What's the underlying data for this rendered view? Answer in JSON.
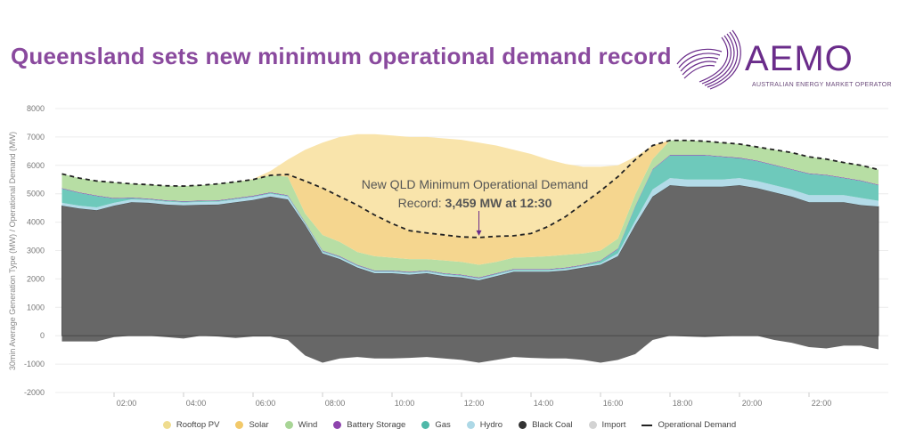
{
  "header": {
    "title": "Queensland sets new minimum operational demand record"
  },
  "logo": {
    "brand": "AEMO",
    "subtitle": "AUSTRALIAN ENERGY MARKET OPERATOR"
  },
  "chart_data": {
    "type": "area",
    "stacked": true,
    "title": "Queensland sets new minimum operational demand record",
    "xlabel": "",
    "ylabel": "30min Average Generation Type (MW) / Operational Demand (MW)",
    "ylim": [
      -2000,
      8000
    ],
    "yticks": [
      8000,
      7000,
      6000,
      5000,
      4000,
      3000,
      2000,
      1000,
      0,
      -1000,
      -2000
    ],
    "xtick_labels": [
      "02:00",
      "04:00",
      "06:00",
      "08:00",
      "10:00",
      "12:00",
      "14:00",
      "16:00",
      "18:00",
      "20:00",
      "22:00"
    ],
    "xtick_hours": [
      2,
      4,
      6,
      8,
      10,
      12,
      14,
      16,
      18,
      20,
      22
    ],
    "grid": true,
    "legend_position": "bottom",
    "x_hours": [
      0.5,
      1,
      1.5,
      2,
      2.5,
      3,
      3.5,
      4,
      4.5,
      5,
      5.5,
      6,
      6.5,
      7,
      7.5,
      8,
      8.5,
      9,
      9.5,
      10,
      10.5,
      11,
      11.5,
      12,
      12.5,
      13,
      13.5,
      14,
      14.5,
      15,
      15.5,
      16,
      16.5,
      17,
      17.5,
      18,
      18.5,
      19,
      19.5,
      20,
      20.5,
      21,
      21.5,
      22,
      22.5,
      23,
      23.5,
      24
    ],
    "series": [
      {
        "name": "Import",
        "color": "#d3d3d3",
        "fill": "#676767",
        "values": [
          -200,
          -200,
          -200,
          -50,
          0,
          0,
          -50,
          -100,
          0,
          -30,
          -80,
          -30,
          -30,
          -150,
          -700,
          -950,
          -800,
          -750,
          -800,
          -800,
          -780,
          -750,
          -800,
          -850,
          -950,
          -850,
          -750,
          -780,
          -800,
          -800,
          -850,
          -950,
          -850,
          -650,
          -150,
          0,
          -30,
          -50,
          -20,
          0,
          0,
          -150,
          -250,
          -400,
          -450,
          -350,
          -350,
          -480
        ]
      },
      {
        "name": "Black Coal",
        "color": "#333333",
        "fill": "#676767",
        "values": [
          4580,
          4480,
          4420,
          4580,
          4700,
          4680,
          4620,
          4590,
          4610,
          4620,
          4700,
          4780,
          4900,
          4800,
          3900,
          2900,
          2700,
          2400,
          2200,
          2200,
          2150,
          2200,
          2100,
          2050,
          1950,
          2100,
          2250,
          2250,
          2250,
          2300,
          2400,
          2500,
          2800,
          3900,
          4900,
          5300,
          5250,
          5250,
          5250,
          5300,
          5200,
          5050,
          4900,
          4700,
          4700,
          4700,
          4600,
          4550
        ]
      },
      {
        "name": "Hydro",
        "color": "#add8e6",
        "fill": "#b3dbe8",
        "values": [
          100,
          100,
          100,
          100,
          100,
          100,
          100,
          100,
          100,
          100,
          100,
          100,
          100,
          100,
          50,
          50,
          50,
          50,
          50,
          50,
          50,
          50,
          50,
          50,
          50,
          50,
          50,
          50,
          50,
          50,
          50,
          50,
          100,
          150,
          250,
          250,
          250,
          250,
          250,
          250,
          250,
          250,
          250,
          250,
          250,
          250,
          250,
          200
        ]
      },
      {
        "name": "Gas",
        "color": "#4fb8a8",
        "fill": "#6ec9bb",
        "values": [
          500,
          450,
          400,
          150,
          50,
          30,
          30,
          30,
          30,
          30,
          30,
          30,
          30,
          30,
          30,
          30,
          30,
          30,
          30,
          30,
          30,
          30,
          30,
          30,
          30,
          30,
          30,
          30,
          30,
          30,
          30,
          80,
          150,
          500,
          700,
          800,
          850,
          850,
          800,
          700,
          700,
          700,
          700,
          750,
          700,
          600,
          600,
          550
        ]
      },
      {
        "name": "Battery Storage",
        "color": "#8e44ad",
        "fill": "#8e44ad",
        "values": [
          20,
          20,
          20,
          20,
          20,
          20,
          20,
          20,
          20,
          20,
          20,
          20,
          20,
          20,
          20,
          20,
          20,
          20,
          20,
          20,
          20,
          20,
          20,
          20,
          20,
          20,
          20,
          20,
          20,
          20,
          20,
          20,
          20,
          20,
          20,
          20,
          20,
          20,
          20,
          20,
          20,
          20,
          20,
          20,
          20,
          20,
          20,
          20
        ]
      },
      {
        "name": "Wind",
        "color": "#a8d596",
        "fill": "#b7dea4",
        "values": [
          500,
          500,
          510,
          550,
          480,
          490,
          510,
          530,
          540,
          580,
          570,
          570,
          600,
          650,
          300,
          550,
          500,
          450,
          500,
          450,
          450,
          400,
          450,
          450,
          450,
          400,
          400,
          420,
          450,
          450,
          400,
          350,
          350,
          400,
          350,
          510,
          510,
          480,
          480,
          480,
          480,
          530,
          580,
          580,
          550,
          530,
          530,
          530
        ]
      },
      {
        "name": "Solar",
        "color": "#f2c96a",
        "fill": "#f5d68f",
        "values": [
          0,
          0,
          0,
          0,
          0,
          0,
          0,
          0,
          0,
          0,
          0,
          0,
          0,
          80,
          1150,
          1650,
          1600,
          1650,
          1450,
          1200,
          1000,
          920,
          900,
          880,
          959,
          900,
          770,
          830,
          1050,
          1350,
          1750,
          2100,
          2180,
          1230,
          480,
          0,
          0,
          0,
          0,
          0,
          0,
          0,
          0,
          0,
          0,
          0,
          0,
          0
        ]
      },
      {
        "name": "Rooftop PV",
        "color": "#f0dc8c",
        "fill": "#f9e4ab",
        "values": [
          0,
          0,
          0,
          0,
          0,
          0,
          0,
          0,
          0,
          0,
          0,
          20,
          150,
          520,
          1100,
          1600,
          2100,
          2500,
          2850,
          3100,
          3300,
          3380,
          3400,
          3420,
          3340,
          3200,
          3030,
          2800,
          2350,
          1850,
          1300,
          850,
          400,
          100,
          0,
          0,
          0,
          0,
          0,
          0,
          0,
          0,
          0,
          0,
          0,
          0,
          0,
          0
        ]
      }
    ],
    "operational_demand": {
      "name": "Operational Demand",
      "color": "#222222",
      "values": [
        5700,
        5550,
        5450,
        5400,
        5350,
        5320,
        5280,
        5270,
        5300,
        5350,
        5420,
        5500,
        5650,
        5680,
        5450,
        5200,
        4900,
        4600,
        4250,
        3950,
        3700,
        3620,
        3550,
        3480,
        3459,
        3500,
        3520,
        3600,
        3850,
        4200,
        4650,
        5100,
        5600,
        6200,
        6700,
        6880,
        6880,
        6850,
        6800,
        6750,
        6650,
        6550,
        6450,
        6300,
        6220,
        6100,
        6000,
        5850
      ]
    },
    "annotation": {
      "line1": "New QLD Minimum Operational Demand",
      "line2_prefix": "Record: ",
      "line2_bold": "3,459 MW at 12:30",
      "x_hour": 12.5,
      "y_value": 3459,
      "arrow_color": "#6a2c8a"
    },
    "legend": [
      {
        "name": "Rooftop PV",
        "color": "#efdc8f",
        "marker": "dot"
      },
      {
        "name": "Solar",
        "color": "#f2c96a",
        "marker": "dot"
      },
      {
        "name": "Wind",
        "color": "#a8d596",
        "marker": "dot"
      },
      {
        "name": "Battery Storage",
        "color": "#8e44ad",
        "marker": "dot"
      },
      {
        "name": "Gas",
        "color": "#4fb8a8",
        "marker": "dot"
      },
      {
        "name": "Hydro",
        "color": "#add8e6",
        "marker": "dot"
      },
      {
        "name": "Black Coal",
        "color": "#333333",
        "marker": "dot"
      },
      {
        "name": "Import",
        "color": "#d3d3d3",
        "marker": "dot"
      },
      {
        "name": "Operational Demand",
        "color": "#222222",
        "marker": "dash"
      }
    ]
  }
}
